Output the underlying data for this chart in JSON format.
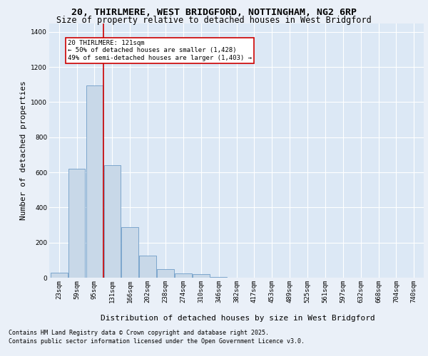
{
  "title_line1": "20, THIRLMERE, WEST BRIDGFORD, NOTTINGHAM, NG2 6RP",
  "title_line2": "Size of property relative to detached houses in West Bridgford",
  "xlabel": "Distribution of detached houses by size in West Bridgford",
  "ylabel": "Number of detached properties",
  "categories": [
    "23sqm",
    "59sqm",
    "95sqm",
    "131sqm",
    "166sqm",
    "202sqm",
    "238sqm",
    "274sqm",
    "310sqm",
    "346sqm",
    "382sqm",
    "417sqm",
    "453sqm",
    "489sqm",
    "525sqm",
    "561sqm",
    "597sqm",
    "632sqm",
    "668sqm",
    "704sqm",
    "740sqm"
  ],
  "values": [
    30,
    620,
    1095,
    640,
    290,
    125,
    50,
    25,
    20,
    5,
    0,
    0,
    0,
    0,
    0,
    0,
    0,
    0,
    0,
    0,
    0
  ],
  "bar_color": "#c8d8e8",
  "bar_edge_color": "#5a8fc0",
  "vline_color": "#cc0000",
  "vline_x": 2.5,
  "annotation_text": "20 THIRLMERE: 121sqm\n← 50% of detached houses are smaller (1,428)\n49% of semi-detached houses are larger (1,403) →",
  "annotation_box_color": "#ffffff",
  "annotation_box_edge_color": "#cc0000",
  "ylim": [
    0,
    1450
  ],
  "yticks": [
    0,
    200,
    400,
    600,
    800,
    1000,
    1200,
    1400
  ],
  "bg_color": "#eaf0f8",
  "plot_bg_color": "#dce8f5",
  "grid_color": "#ffffff",
  "footer_line1": "Contains HM Land Registry data © Crown copyright and database right 2025.",
  "footer_line2": "Contains public sector information licensed under the Open Government Licence v3.0.",
  "title_fontsize": 9.5,
  "subtitle_fontsize": 8.5,
  "ylabel_fontsize": 8,
  "xlabel_fontsize": 8,
  "tick_fontsize": 6.5,
  "annotation_fontsize": 6.5,
  "footer_fontsize": 6
}
